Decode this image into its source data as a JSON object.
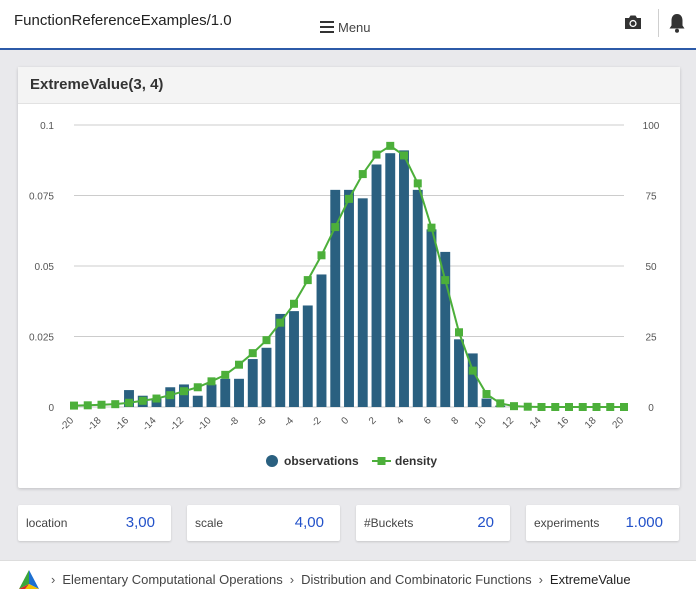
{
  "header": {
    "app_title": "FunctionReferenceExamples/1.0",
    "menu_label": "Menu"
  },
  "card": {
    "title": "ExtremeValue(3, 4)"
  },
  "chart_data": {
    "type": "bar",
    "title": "ExtremeValue(3, 4)",
    "x": [
      -20,
      -19,
      -18,
      -17,
      -16,
      -15,
      -14,
      -13,
      -12,
      -11,
      -10,
      -9,
      -8,
      -7,
      -6,
      -5,
      -4,
      -3,
      -2,
      -1,
      0,
      1,
      2,
      3,
      4,
      5,
      6,
      7,
      8,
      9,
      10,
      11,
      12,
      13,
      14,
      15,
      16,
      17,
      18,
      19,
      20
    ],
    "x_ticks": [
      "-20",
      "-18",
      "-16",
      "-14",
      "-12",
      "-10",
      "-8",
      "-6",
      "-4",
      "-2",
      "0",
      "2",
      "4",
      "6",
      "8",
      "10",
      "12",
      "14",
      "16",
      "18",
      "20"
    ],
    "xlim": [
      -20,
      20
    ],
    "y_left_ticks": [
      "0",
      "0.025",
      "0.05",
      "0.075",
      "0.1"
    ],
    "ylim_left": [
      0,
      0.1
    ],
    "y_right_ticks": [
      "0",
      "25",
      "50",
      "75",
      "100"
    ],
    "ylim_right": [
      0,
      100
    ],
    "grid": true,
    "legend_position": "bottom",
    "series": [
      {
        "name": "observations",
        "kind": "bar",
        "axis": "left",
        "color": "#2a6080",
        "values": [
          0,
          0,
          0,
          0,
          0.006,
          0.004,
          0.003,
          0.007,
          0.008,
          0.004,
          0.008,
          0.01,
          0.01,
          0.017,
          0.021,
          0.033,
          0.034,
          0.036,
          0.047,
          0.077,
          0.077,
          0.074,
          0.086,
          0.09,
          0.091,
          0.077,
          0.063,
          0.055,
          0.024,
          0.019,
          0.003,
          0.0005,
          0,
          0,
          0,
          0,
          0,
          0,
          0,
          0,
          0
        ]
      },
      {
        "name": "density",
        "kind": "line",
        "axis": "right",
        "color": "#4caf3a",
        "values": [
          0.5,
          0.6,
          0.8,
          1.0,
          1.5,
          2.2,
          3.0,
          4.2,
          5.6,
          7.0,
          9.1,
          11.4,
          15.0,
          19.1,
          23.7,
          29.9,
          36.6,
          45.0,
          53.8,
          63.8,
          73.8,
          82.6,
          89.5,
          92.6,
          89.2,
          79.3,
          63.6,
          45.0,
          26.5,
          12.9,
          4.6,
          1.3,
          0.3,
          0.1,
          0,
          0,
          0,
          0,
          0,
          0,
          0
        ]
      }
    ]
  },
  "params": [
    {
      "label": "location",
      "value": "3,00"
    },
    {
      "label": "scale",
      "value": "4,00"
    },
    {
      "label": "#Buckets",
      "value": "20"
    },
    {
      "label": "experiments",
      "value": "1.000"
    }
  ],
  "breadcrumb": {
    "items": [
      "Elementary Computational Operations",
      "Distribution and Combinatoric Functions",
      "ExtremeValue"
    ]
  },
  "icons": {
    "menu": "hamburger-icon",
    "camera": "camera-icon",
    "bell": "bell-icon",
    "logo": "triangle-logo-icon",
    "separator": "chevron-right-icon"
  },
  "colors": {
    "accent": "#2c5aa8",
    "value_text": "#2251c9",
    "bar": "#2a6080",
    "line": "#4caf3a"
  }
}
